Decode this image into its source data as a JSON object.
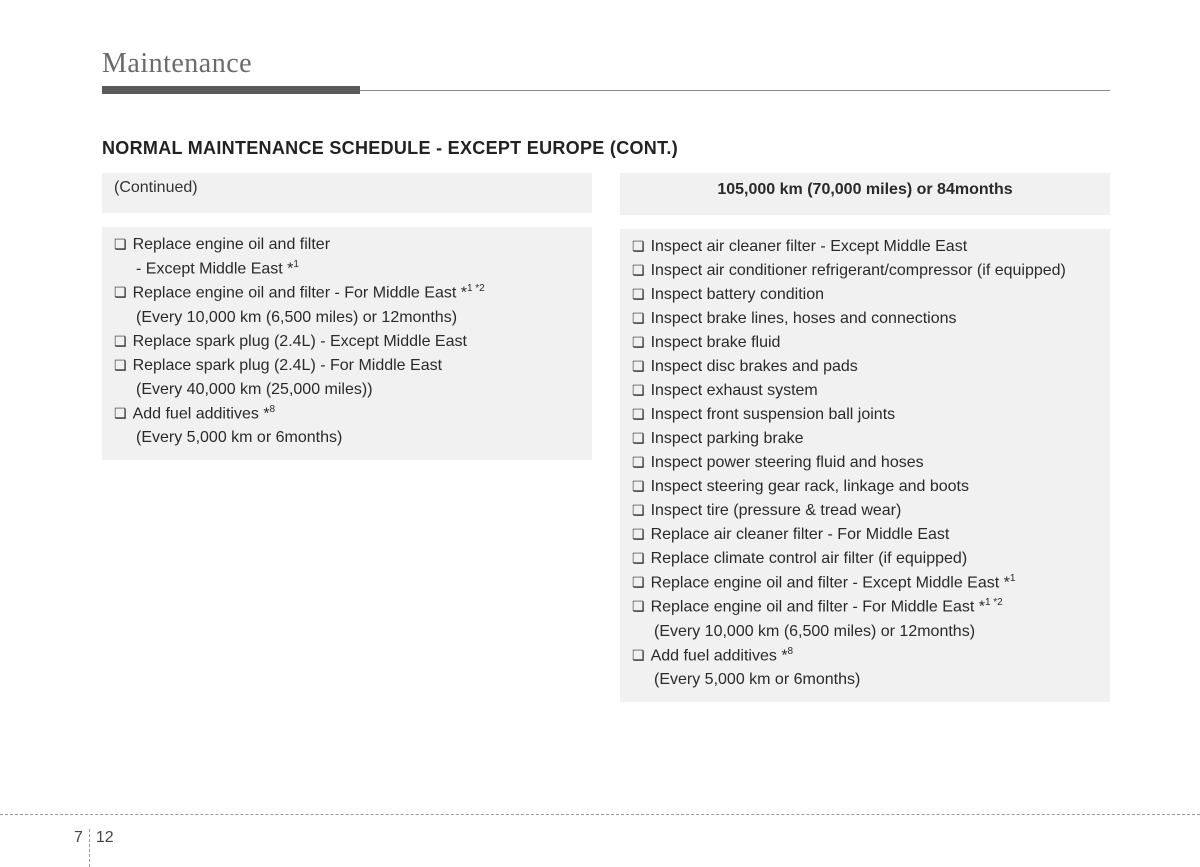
{
  "header": {
    "title": "Maintenance"
  },
  "section_heading": "NORMAL MAINTENANCE SCHEDULE - EXCEPT EUROPE (CONT.)",
  "left": {
    "continued_label": "(Continued)",
    "items": [
      {
        "text": "Replace engine oil and filter",
        "sup": "",
        "sub": "- Except Middle East *",
        "sub_sup": "1"
      },
      {
        "text": "Replace engine oil and filter - For Middle East *",
        "sup": "1 *2",
        "sub": "(Every 10,000 km (6,500 miles) or 12months)",
        "sub_sup": ""
      },
      {
        "text": "Replace spark plug (2.4L) - Except Middle East",
        "sup": "",
        "sub": "",
        "sub_sup": ""
      },
      {
        "text": "Replace spark plug (2.4L) - For Middle East",
        "sup": "",
        "sub": "(Every 40,000 km (25,000 miles))",
        "sub_sup": ""
      },
      {
        "text": "Add fuel additives *",
        "sup": "8",
        "sub": "(Every 5,000 km or 6months)",
        "sub_sup": ""
      }
    ]
  },
  "right": {
    "title": "105,000 km (70,000 miles) or 84months",
    "items": [
      {
        "text": "Inspect air cleaner filter - Except Middle East",
        "sup": "",
        "sub": "",
        "sub_sup": ""
      },
      {
        "text": "Inspect air conditioner refrigerant/compressor (if equipped)",
        "sup": "",
        "sub": "",
        "sub_sup": ""
      },
      {
        "text": "Inspect battery condition",
        "sup": "",
        "sub": "",
        "sub_sup": ""
      },
      {
        "text": "Inspect brake lines, hoses and connections",
        "sup": "",
        "sub": "",
        "sub_sup": ""
      },
      {
        "text": "Inspect brake fluid",
        "sup": "",
        "sub": "",
        "sub_sup": ""
      },
      {
        "text": "Inspect disc brakes and pads",
        "sup": "",
        "sub": "",
        "sub_sup": ""
      },
      {
        "text": "Inspect exhaust system",
        "sup": "",
        "sub": "",
        "sub_sup": ""
      },
      {
        "text": "Inspect front suspension ball joints",
        "sup": "",
        "sub": "",
        "sub_sup": ""
      },
      {
        "text": "Inspect parking brake",
        "sup": "",
        "sub": "",
        "sub_sup": ""
      },
      {
        "text": "Inspect power steering fluid and hoses",
        "sup": "",
        "sub": "",
        "sub_sup": ""
      },
      {
        "text": "Inspect steering gear rack, linkage and boots",
        "sup": "",
        "sub": "",
        "sub_sup": ""
      },
      {
        "text": "Inspect tire (pressure & tread wear)",
        "sup": "",
        "sub": "",
        "sub_sup": ""
      },
      {
        "text": "Replace air cleaner filter - For Middle East",
        "sup": "",
        "sub": "",
        "sub_sup": ""
      },
      {
        "text": "Replace climate control air filter (if equipped)",
        "sup": "",
        "sub": "",
        "sub_sup": ""
      },
      {
        "text": "Replace engine oil and filter - Except Middle East *",
        "sup": "1",
        "sub": "",
        "sub_sup": ""
      },
      {
        "text": "Replace engine oil and filter - For Middle East *",
        "sup": "1 *2",
        "sub": "(Every 10,000 km (6,500 miles) or 12months)",
        "sub_sup": ""
      },
      {
        "text": "Add fuel additives *",
        "sup": "8",
        "sub": "(Every 5,000 km or 6months)",
        "sub_sup": ""
      }
    ]
  },
  "page": {
    "chapter": "7",
    "num": "12"
  },
  "glyphs": {
    "box": "❏"
  }
}
